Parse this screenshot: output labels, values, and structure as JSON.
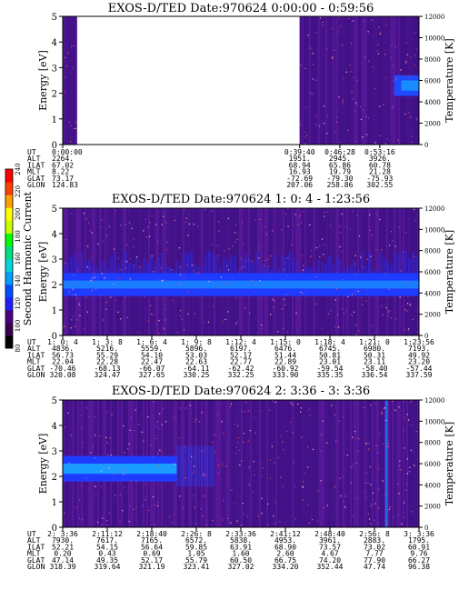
{
  "chart_data": [
    {
      "type": "heatmap",
      "title": "EXOS-D/TED   Date:970624  0:00:00 - 0:59:56",
      "ylabel": "Energy [eV]",
      "y2label": "Temperature [K]",
      "ylim": [
        0,
        5
      ],
      "y2lim": [
        0,
        12000
      ],
      "yticks": [
        "0",
        "1",
        "2",
        "3",
        "4",
        "5"
      ],
      "y2ticks": [
        "0",
        "2000",
        "4000",
        "6000",
        "8000",
        "10000",
        "12000"
      ],
      "band": {
        "ecenter": 2.3,
        "halfwidth": 0.4
      },
      "data_coverage": [
        [
          0.0,
          0.04
        ],
        [
          0.665,
          1.0
        ]
      ],
      "ephemeris": {
        "labels": [
          "UT",
          "ALT",
          "ILAT",
          "MLT",
          "GLAT",
          "GLON"
        ],
        "columns": [
          {
            "pos": 0.0,
            "values": [
              "0:00:00",
              "2264.",
              "67.02",
              "8.22",
              "73.17",
              "124.83"
            ]
          },
          {
            "pos": 0.665,
            "values": [
              "0:39:40",
              "1951.",
              "68.94",
              "16.93",
              "-72.69",
              "207.06"
            ]
          },
          {
            "pos": 0.778,
            "values": [
              "0:46:28",
              "2945.",
              "65.86",
              "19.79",
              "-79.30",
              "258.86"
            ]
          },
          {
            "pos": 0.89,
            "values": [
              "0:53:16",
              "3926.",
              "60.78",
              "21.28",
              "-75.93",
              "302.55"
            ]
          }
        ]
      }
    },
    {
      "type": "heatmap",
      "title": "EXOS-D/TED   Date:970624  1: 0: 4 - 1:23:56",
      "ylabel": "Energy [eV]",
      "y2label": "Temperature [K]",
      "ylim": [
        0,
        5
      ],
      "y2lim": [
        0,
        12000
      ],
      "yticks": [
        "0",
        "1",
        "2",
        "3",
        "4",
        "5"
      ],
      "y2ticks": [
        "0",
        "2000",
        "4000",
        "6000",
        "8000",
        "10000",
        "12000"
      ],
      "band": {
        "ecenter": 2.0,
        "halfwidth": 0.45
      },
      "data_coverage": [
        [
          0.0,
          1.0
        ]
      ],
      "ephemeris": {
        "labels": [
          "UT",
          "ALT",
          "ILAT",
          "MLT",
          "GLAT",
          "GLON"
        ],
        "columns": [
          {
            "pos": 0.0,
            "values": [
              "1: 0: 4",
              "4836.",
              "56.73",
              "22.04",
              "-70.46",
              "320.08"
            ]
          },
          {
            "pos": 0.125,
            "values": [
              "1: 3: 8",
              "5216.",
              "55.29",
              "22.28",
              "-68.13",
              "324.47"
            ]
          },
          {
            "pos": 0.25,
            "values": [
              "1: 6: 4",
              "5559.",
              "54.10",
              "22.47",
              "-66.07",
              "327.65"
            ]
          },
          {
            "pos": 0.375,
            "values": [
              "1: 9: 8",
              "5896.",
              "53.03",
              "22.63",
              "-64.11",
              "330.25"
            ]
          },
          {
            "pos": 0.5,
            "values": [
              "1:12: 4",
              "6197.",
              "52.17",
              "22.77",
              "-62.42",
              "332.25"
            ]
          },
          {
            "pos": 0.625,
            "values": [
              "1:15: 0",
              "6476.",
              "51.44",
              "22.89",
              "-60.92",
              "333.90"
            ]
          },
          {
            "pos": 0.75,
            "values": [
              "1:18: 4",
              "6745.",
              "50.81",
              "23.01",
              "-59.54",
              "335.35"
            ]
          },
          {
            "pos": 0.875,
            "values": [
              "1:21: 0",
              "6980.",
              "50.31",
              "23.11",
              "-58.40",
              "336.54"
            ]
          },
          {
            "pos": 1.0,
            "values": [
              "1:23:56",
              "7193.",
              "49.92",
              "23.20",
              "-57.44",
              "337.59"
            ]
          }
        ]
      }
    },
    {
      "type": "heatmap",
      "title": "EXOS-D/TED   Date:970624  2: 3:36 -  3: 3:36",
      "ylabel": "Energy [eV]",
      "y2label": "Temperature [K]",
      "ylim": [
        0,
        5
      ],
      "y2lim": [
        0,
        12000
      ],
      "yticks": [
        "0",
        "1",
        "2",
        "3",
        "4",
        "5"
      ],
      "y2ticks": [
        "0",
        "2000",
        "4000",
        "6000",
        "8000",
        "10000",
        "12000"
      ],
      "band": {
        "ecenter": 2.3,
        "halfwidth": 0.5
      },
      "data_coverage": [
        [
          0.0,
          1.0
        ]
      ],
      "ephemeris": {
        "labels": [
          "UT",
          "ALT",
          "ILAT",
          "MLT",
          "GLAT",
          "GLON"
        ],
        "columns": [
          {
            "pos": 0.0,
            "values": [
              "2: 3:36",
              "7930.",
              "52.21",
              "0.20",
              "47.14",
              "318.39"
            ]
          },
          {
            "pos": 0.125,
            "values": [
              "2:11:12",
              "7617.",
              "54.15",
              "0.43",
              "49.35",
              "319.64"
            ]
          },
          {
            "pos": 0.25,
            "values": [
              "2:18:40",
              "7165.",
              "56.64",
              "0.69",
              "52.17",
              "321.19"
            ]
          },
          {
            "pos": 0.375,
            "values": [
              "2:26: 8",
              "6572.",
              "59.85",
              "1.05",
              "55.79",
              "323.41"
            ]
          },
          {
            "pos": 0.5,
            "values": [
              "2:33:36",
              "5838.",
              "63.91",
              "1.60",
              "60.50",
              "327.02"
            ]
          },
          {
            "pos": 0.625,
            "values": [
              "2:41:12",
              "4953.",
              "68.90",
              "2.60",
              "66.75",
              "334.20"
            ]
          },
          {
            "pos": 0.75,
            "values": [
              "2:48:40",
              "3961.",
              "73.57",
              "4.67",
              "74.20",
              "352.44"
            ]
          },
          {
            "pos": 0.875,
            "values": [
              "2:56: 8",
              "2883.",
              "73.02",
              "7.77",
              "77.90",
              "47.74"
            ]
          },
          {
            "pos": 1.0,
            "values": [
              "3: 3:36",
              "1795.",
              "60.91",
              "9.76",
              "66.27",
              "96.38"
            ]
          }
        ]
      }
    }
  ],
  "colorbar": {
    "label": "Second Harmonic Current",
    "ticks": [
      "80",
      "100",
      "120",
      "140",
      "160",
      "180",
      "200",
      "220",
      "240"
    ],
    "colors": [
      "#000000",
      "#3a0050",
      "#4b0082",
      "#2020ff",
      "#0050ff",
      "#00a0ff",
      "#00d8d8",
      "#00e080",
      "#00ff00",
      "#c8ff00",
      "#ffff00",
      "#ffa000",
      "#ff4000",
      "#ff0000"
    ]
  }
}
